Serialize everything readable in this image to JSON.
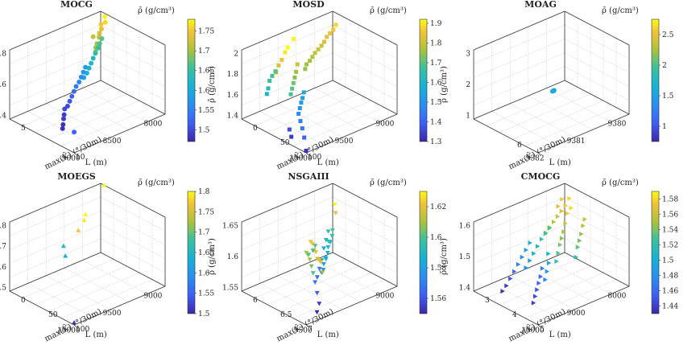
{
  "figure": {
    "colors": {
      "low": "#3e26a8",
      "mid": "#20b5a6",
      "high": "#f9fb0e"
    }
  },
  "chart_data": [
    {
      "type": "scatter3d",
      "title": "MOCG",
      "marker": "circle",
      "xlabel": "L (m)",
      "ylabel": "max(K̄) (°/30m)",
      "zlabel": "ρ̄ (g/cm³)",
      "colorbar_label": "ρ̄ (g/cm³)",
      "xlim": [
        8000,
        9000
      ],
      "ylim": [
        2,
        10
      ],
      "zlim": [
        1.4,
        1.8
      ],
      "xticks": [
        "8000",
        "8500",
        "9000"
      ],
      "yticks": [
        "5",
        "10"
      ],
      "zticks": [
        "1.4",
        "1.6",
        "1.8"
      ],
      "clim": [
        1.47,
        1.78
      ],
      "cticks": [
        "1.5",
        "1.55",
        "1.6",
        "1.65",
        "1.7",
        "1.75"
      ],
      "points": [
        [
          8000,
          2.5,
          1.78
        ],
        [
          8020,
          2.8,
          1.76
        ],
        [
          8050,
          2.6,
          1.75
        ],
        [
          8080,
          3.0,
          1.74
        ],
        [
          8120,
          3.2,
          1.73
        ],
        [
          8150,
          3.5,
          1.72
        ],
        [
          8180,
          3.1,
          1.72
        ],
        [
          8200,
          3.8,
          1.7
        ],
        [
          8230,
          4.0,
          1.69
        ],
        [
          8260,
          4.3,
          1.68
        ],
        [
          8050,
          2.7,
          1.67
        ],
        [
          8100,
          3.0,
          1.66
        ],
        [
          8140,
          3.3,
          1.65
        ],
        [
          8200,
          3.6,
          1.64
        ],
        [
          8250,
          3.9,
          1.63
        ],
        [
          8300,
          4.2,
          1.62
        ],
        [
          8350,
          4.5,
          1.61
        ],
        [
          8400,
          4.8,
          1.6
        ],
        [
          8450,
          5.0,
          1.59
        ],
        [
          8300,
          3.5,
          1.58
        ],
        [
          8350,
          3.8,
          1.57
        ],
        [
          8400,
          4.1,
          1.56
        ],
        [
          8450,
          4.4,
          1.55
        ],
        [
          8500,
          4.6,
          1.54
        ],
        [
          8550,
          4.9,
          1.53
        ],
        [
          8600,
          5.2,
          1.52
        ],
        [
          8650,
          5.5,
          1.51
        ],
        [
          8700,
          5.8,
          1.5
        ],
        [
          8750,
          6.0,
          1.5
        ],
        [
          8800,
          6.5,
          1.49
        ],
        [
          8850,
          7.0,
          1.49
        ],
        [
          8900,
          7.5,
          1.48
        ],
        [
          8950,
          8.0,
          1.48
        ],
        [
          9000,
          10.0,
          1.52
        ]
      ]
    },
    {
      "type": "scatter3d",
      "title": "MOSD",
      "marker": "square",
      "xlabel": "L (m)",
      "ylabel": "max(K̄) (°/30m)",
      "zlabel": "ρ̄ (g/cm³)",
      "colorbar_label": "ρ̄ (g/cm³)",
      "xlim": [
        9000,
        10000
      ],
      "ylim": [
        0,
        100
      ],
      "zlim": [
        1.3,
        2.0
      ],
      "xticks": [
        "9000",
        "9500",
        "10000"
      ],
      "yticks": [
        "0",
        "50",
        "100"
      ],
      "zticks": [
        "1.4",
        "1.6",
        "1.8",
        "2"
      ],
      "clim": [
        1.3,
        1.92
      ],
      "cticks": [
        "1.3",
        "1.4",
        "1.5",
        "1.6",
        "1.7",
        "1.8",
        "1.9"
      ],
      "points": [
        [
          9000,
          5,
          1.88
        ],
        [
          9050,
          8,
          1.86
        ],
        [
          9100,
          10,
          1.85
        ],
        [
          9150,
          12,
          1.84
        ],
        [
          9200,
          15,
          1.82
        ],
        [
          9250,
          18,
          1.81
        ],
        [
          9300,
          20,
          1.8
        ],
        [
          9350,
          22,
          1.79
        ],
        [
          9400,
          25,
          1.78
        ],
        [
          9450,
          28,
          1.77
        ],
        [
          9500,
          30,
          1.76
        ],
        [
          9550,
          35,
          1.75
        ],
        [
          9500,
          10,
          1.95
        ],
        [
          9600,
          15,
          1.92
        ],
        [
          9650,
          18,
          1.9
        ],
        [
          9700,
          20,
          1.85
        ],
        [
          9750,
          22,
          1.82
        ],
        [
          9800,
          25,
          1.78
        ],
        [
          9600,
          30,
          1.8
        ],
        [
          9650,
          35,
          1.76
        ],
        [
          9700,
          40,
          1.74
        ],
        [
          9750,
          45,
          1.72
        ],
        [
          9800,
          50,
          1.7
        ],
        [
          9850,
          55,
          1.68
        ],
        [
          9700,
          10,
          1.7
        ],
        [
          9750,
          12,
          1.68
        ],
        [
          9800,
          15,
          1.66
        ],
        [
          9850,
          20,
          1.62
        ],
        [
          9900,
          25,
          1.6
        ],
        [
          9600,
          40,
          1.55
        ],
        [
          9650,
          45,
          1.53
        ],
        [
          9700,
          50,
          1.52
        ],
        [
          9750,
          55,
          1.5
        ],
        [
          9800,
          60,
          1.48
        ],
        [
          9850,
          70,
          1.46
        ],
        [
          9900,
          80,
          1.44
        ],
        [
          9950,
          90,
          1.4
        ],
        [
          10000,
          100,
          1.32
        ],
        [
          9900,
          60,
          1.36
        ],
        [
          9950,
          70,
          1.34
        ]
      ]
    },
    {
      "type": "scatter3d",
      "title": "MOAG",
      "marker": "circle",
      "xlabel": "L (m)",
      "ylabel": "max(K̄) (°/30m)",
      "zlabel": "ρ̄ (g/cm³)",
      "colorbar_label": "ρ̄ (g/cm³)",
      "xlim": [
        9380,
        9382.5
      ],
      "ylim": [
        4,
        7
      ],
      "zlim": [
        1,
        3
      ],
      "xticks": [
        "9380",
        "9381",
        "9382"
      ],
      "yticks": [
        "6"
      ],
      "zticks": [
        "1",
        "2",
        "3"
      ],
      "clim": [
        0.75,
        2.75
      ],
      "cticks": [
        "1",
        "1.5",
        "2",
        "2.5"
      ],
      "points": [
        [
          9381,
          5.2,
          1.55
        ],
        [
          9381.05,
          5.25,
          1.57
        ],
        [
          9381.1,
          5.3,
          1.6
        ]
      ]
    },
    {
      "type": "scatter3d",
      "title": "MOEGS",
      "marker": "triangle-up",
      "xlabel": "L (m)",
      "ylabel": "max(K̄) (°/30m)",
      "zlabel": "ρ̄ (g/cm³)",
      "colorbar_label": "ρ̄ (g/cm³)",
      "xlim": [
        9000,
        10000
      ],
      "ylim": [
        0,
        100
      ],
      "zlim": [
        1.5,
        1.8
      ],
      "xticks": [
        "9000",
        "9500",
        "10000"
      ],
      "yticks": [
        "0",
        "50",
        "100"
      ],
      "zticks": [
        "1.5",
        "1.6",
        "1.7",
        "1.8"
      ],
      "clim": [
        1.5,
        1.8
      ],
      "cticks": [
        "1.5",
        "1.55",
        "1.6",
        "1.65",
        "1.7",
        "1.75",
        "1.8"
      ],
      "points": [
        [
          9000,
          5,
          1.8
        ],
        [
          9450,
          40,
          1.8
        ],
        [
          9500,
          45,
          1.79
        ],
        [
          9600,
          50,
          1.77
        ],
        [
          9550,
          20,
          1.65
        ],
        [
          9600,
          30,
          1.63
        ],
        [
          10000,
          100,
          1.51
        ]
      ]
    },
    {
      "type": "scatter3d",
      "title": "NSGAIII",
      "marker": "triangle-down",
      "xlabel": "L (m)",
      "ylabel": "max(K̄) (°/30m)",
      "zlabel": "ρ̄ (g/cm³)",
      "colorbar_label": "ρ̄ (g/cm³)",
      "xlim": [
        8900,
        9600
      ],
      "ylim": [
        5.8,
        7.3
      ],
      "zlim": [
        1.55,
        1.65
      ],
      "xticks": [
        "9000",
        "9500"
      ],
      "yticks": [
        "6",
        "6.5",
        "7"
      ],
      "zticks": [
        "1.55",
        "1.6",
        "1.65"
      ],
      "clim": [
        1.55,
        1.63
      ],
      "cticks": [
        "1.56",
        "1.58",
        "1.6",
        "1.62"
      ],
      "points": [
        [
          8950,
          6.0,
          1.63
        ],
        [
          8960,
          6.05,
          1.62
        ],
        [
          9000,
          6.1,
          1.6
        ],
        [
          9020,
          6.15,
          1.595
        ],
        [
          9050,
          6.2,
          1.59
        ],
        [
          9080,
          6.25,
          1.595
        ],
        [
          9100,
          6.3,
          1.59
        ],
        [
          9120,
          6.35,
          1.585
        ],
        [
          9150,
          6.4,
          1.58
        ],
        [
          9170,
          6.45,
          1.585
        ],
        [
          9200,
          6.5,
          1.58
        ],
        [
          9220,
          6.55,
          1.575
        ],
        [
          9250,
          6.6,
          1.575
        ],
        [
          9000,
          6.0,
          1.595
        ],
        [
          9050,
          6.1,
          1.59
        ],
        [
          9100,
          6.2,
          1.585
        ],
        [
          9150,
          6.3,
          1.575
        ],
        [
          9200,
          6.4,
          1.57
        ],
        [
          9250,
          6.5,
          1.565
        ],
        [
          9300,
          6.6,
          1.565
        ],
        [
          9350,
          6.8,
          1.56
        ],
        [
          9400,
          7.0,
          1.555
        ],
        [
          9450,
          7.1,
          1.55
        ],
        [
          9300,
          6.5,
          1.62
        ],
        [
          9320,
          6.6,
          1.622
        ],
        [
          9340,
          6.7,
          1.618
        ],
        [
          9360,
          6.8,
          1.62
        ],
        [
          9380,
          6.9,
          1.615
        ],
        [
          9400,
          7.0,
          1.618
        ],
        [
          9420,
          7.1,
          1.62
        ],
        [
          9440,
          7.2,
          1.61
        ],
        [
          9350,
          6.55,
          1.61
        ],
        [
          9370,
          6.65,
          1.612
        ],
        [
          9390,
          6.75,
          1.61
        ],
        [
          9410,
          6.85,
          1.605
        ],
        [
          9430,
          6.95,
          1.6
        ],
        [
          9200,
          6.3,
          1.6
        ],
        [
          9250,
          6.4,
          1.6
        ],
        [
          9300,
          6.45,
          1.6
        ]
      ]
    },
    {
      "type": "scatter3d",
      "title": "CMOCG",
      "marker": "triangle-right",
      "xlabel": "L (m)",
      "ylabel": "max(K̄) (°/30m)",
      "zlabel": "ρ̄ (g/cm³)",
      "colorbar_label": "ρ̄ (g/cm³)",
      "xlim": [
        8000,
        11000
      ],
      "ylim": [
        2.5,
        5.5
      ],
      "zlim": [
        1.4,
        1.6
      ],
      "xticks": [
        "8000",
        "9000",
        "10000"
      ],
      "yticks": [
        "3",
        "4",
        "5"
      ],
      "zticks": [
        "1.4",
        "1.5",
        "1.6"
      ],
      "clim": [
        1.43,
        1.59
      ],
      "cticks": [
        "1.44",
        "1.46",
        "1.48",
        "1.5",
        "1.52",
        "1.54",
        "1.56",
        "1.58"
      ],
      "points": [
        [
          8200,
          3.0,
          1.58
        ],
        [
          8400,
          3.1,
          1.57
        ],
        [
          8600,
          3.2,
          1.565
        ],
        [
          8800,
          3.3,
          1.56
        ],
        [
          9000,
          3.4,
          1.555
        ],
        [
          9200,
          3.5,
          1.55
        ],
        [
          9400,
          3.6,
          1.545
        ],
        [
          8500,
          3.5,
          1.58
        ],
        [
          8700,
          3.6,
          1.575
        ],
        [
          8900,
          3.8,
          1.56
        ],
        [
          9100,
          4.0,
          1.55
        ],
        [
          9300,
          4.2,
          1.545
        ],
        [
          9500,
          4.4,
          1.54
        ],
        [
          9700,
          4.6,
          1.53
        ],
        [
          9900,
          4.8,
          1.52
        ],
        [
          9000,
          3.2,
          1.53
        ],
        [
          9200,
          3.3,
          1.525
        ],
        [
          9400,
          3.4,
          1.52
        ],
        [
          9600,
          3.5,
          1.51
        ],
        [
          9800,
          3.6,
          1.5
        ],
        [
          10000,
          3.7,
          1.49
        ],
        [
          10200,
          3.8,
          1.48
        ],
        [
          9500,
          3.0,
          1.5
        ],
        [
          9700,
          3.1,
          1.49
        ],
        [
          9900,
          3.2,
          1.48
        ],
        [
          10100,
          3.3,
          1.47
        ],
        [
          10300,
          3.4,
          1.46
        ],
        [
          10500,
          3.5,
          1.45
        ],
        [
          10700,
          3.6,
          1.44
        ],
        [
          10900,
          3.7,
          1.435
        ],
        [
          9800,
          4.0,
          1.47
        ],
        [
          10000,
          4.2,
          1.46
        ],
        [
          10200,
          4.4,
          1.455
        ],
        [
          10400,
          4.6,
          1.45
        ],
        [
          10600,
          4.8,
          1.445
        ],
        [
          10800,
          5.0,
          1.44
        ],
        [
          8400,
          4.0,
          1.56
        ],
        [
          8600,
          4.2,
          1.555
        ],
        [
          8800,
          4.4,
          1.545
        ],
        [
          9000,
          4.6,
          1.54
        ],
        [
          9200,
          4.8,
          1.535
        ],
        [
          9400,
          5.0,
          1.52
        ],
        [
          8300,
          2.8,
          1.575
        ],
        [
          8500,
          2.9,
          1.565
        ],
        [
          9600,
          4.0,
          1.505
        ],
        [
          9800,
          4.3,
          1.495
        ],
        [
          10000,
          4.5,
          1.485
        ],
        [
          10200,
          4.7,
          1.475
        ]
      ]
    }
  ]
}
